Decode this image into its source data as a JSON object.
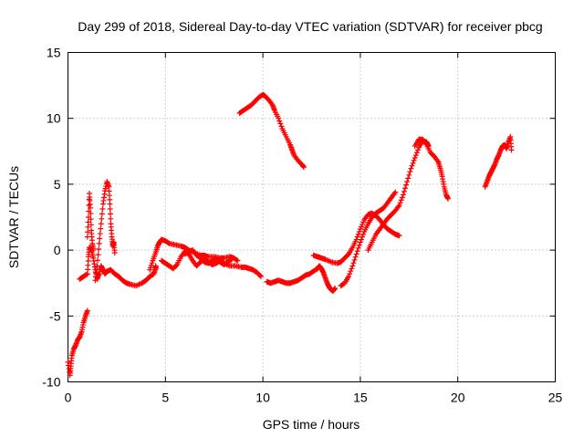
{
  "chart_data": {
    "type": "scatter",
    "title": "Day 299 of 2018, Sidereal Day-to-day VTEC variation (SDTVAR) for receiver pbcg",
    "xlabel": "GPS time / hours",
    "ylabel": "SDTVAR / TECUs",
    "xlim": [
      0,
      25
    ],
    "ylim": [
      -10,
      15
    ],
    "xticks": [
      0,
      5,
      10,
      15,
      20,
      25
    ],
    "yticks": [
      -10,
      -5,
      0,
      5,
      10,
      15
    ],
    "grid": true,
    "marker": "+",
    "series": [
      {
        "name": "SDTVAR",
        "color": "#ff0000",
        "segments": [
          [
            [
              0.0,
              -8.5
            ],
            [
              0.1,
              -9.5
            ],
            [
              0.15,
              -8.8
            ],
            [
              0.2,
              -8.0
            ],
            [
              0.3,
              -7.5
            ],
            [
              0.4,
              -7.2
            ],
            [
              0.5,
              -6.8
            ],
            [
              0.6,
              -6.6
            ],
            [
              0.7,
              -6.2
            ],
            [
              0.8,
              -5.5
            ],
            [
              0.9,
              -5.0
            ],
            [
              1.0,
              -4.6
            ]
          ],
          [
            [
              0.6,
              -2.2
            ],
            [
              0.8,
              -2.0
            ],
            [
              1.0,
              -1.8
            ],
            [
              1.05,
              -0.5
            ],
            [
              1.1,
              0.2
            ],
            [
              1.2,
              0.0
            ],
            [
              1.3,
              -0.6
            ],
            [
              1.4,
              -1.5
            ],
            [
              1.5,
              -2.2
            ],
            [
              1.6,
              -1.8
            ],
            [
              1.7,
              -1.2
            ],
            [
              1.8,
              -1.5
            ],
            [
              1.9,
              -1.8
            ],
            [
              2.0,
              -1.6
            ],
            [
              2.2,
              -1.5
            ],
            [
              2.4,
              -1.8
            ],
            [
              2.6,
              -2.0
            ]
          ],
          [
            [
              1.0,
              1.0
            ],
            [
              1.05,
              2.5
            ],
            [
              1.1,
              4.3
            ],
            [
              1.15,
              3.2
            ],
            [
              1.2,
              1.5
            ],
            [
              1.25,
              0.5
            ],
            [
              1.3,
              0.0
            ]
          ],
          [
            [
              1.4,
              -2.3
            ],
            [
              1.5,
              -1.2
            ],
            [
              1.6,
              0.5
            ],
            [
              1.7,
              2.0
            ],
            [
              1.8,
              3.5
            ],
            [
              1.9,
              4.5
            ],
            [
              2.0,
              5.2
            ],
            [
              2.1,
              4.8
            ],
            [
              2.15,
              3.5
            ],
            [
              2.2,
              2.0
            ],
            [
              2.25,
              1.0
            ],
            [
              2.3,
              0.3
            ],
            [
              2.35,
              0.6
            ],
            [
              2.4,
              -0.2
            ]
          ],
          [
            [
              2.6,
              -2.0
            ],
            [
              2.8,
              -2.3
            ],
            [
              3.0,
              -2.5
            ],
            [
              3.2,
              -2.6
            ],
            [
              3.5,
              -2.7
            ],
            [
              3.8,
              -2.5
            ],
            [
              4.0,
              -2.3
            ],
            [
              4.2,
              -2.0
            ],
            [
              4.4,
              -1.8
            ],
            [
              4.5,
              -1.4
            ],
            [
              4.5,
              -1.2
            ]
          ],
          [
            [
              4.2,
              -1.5
            ],
            [
              4.35,
              -0.8
            ],
            [
              4.5,
              -0.2
            ],
            [
              4.6,
              0.3
            ],
            [
              4.7,
              0.6
            ],
            [
              4.8,
              0.8
            ],
            [
              5.0,
              0.7
            ],
            [
              5.2,
              0.5
            ],
            [
              5.5,
              0.4
            ],
            [
              5.8,
              0.3
            ],
            [
              6.0,
              0.2
            ],
            [
              6.2,
              0.0
            ],
            [
              6.5,
              -0.2
            ],
            [
              6.8,
              -0.4
            ],
            [
              7.0,
              -0.4
            ],
            [
              7.2,
              -0.5
            ],
            [
              7.5,
              -0.5
            ],
            [
              7.8,
              -0.6
            ],
            [
              8.0,
              -0.6
            ],
            [
              8.3,
              -0.5
            ],
            [
              8.5,
              -0.6
            ],
            [
              8.7,
              -0.8
            ]
          ],
          [
            [
              4.8,
              -0.8
            ],
            [
              5.0,
              -1.0
            ],
            [
              5.2,
              -1.2
            ],
            [
              5.4,
              -1.4
            ],
            [
              5.6,
              -1.1
            ],
            [
              5.8,
              -0.5
            ],
            [
              6.0,
              -0.1
            ],
            [
              6.2,
              -0.3
            ],
            [
              6.4,
              -0.8
            ],
            [
              6.6,
              -1.2
            ],
            [
              6.8,
              -0.9
            ],
            [
              7.0,
              -0.7
            ],
            [
              7.2,
              -0.9
            ],
            [
              7.4,
              -1.1
            ],
            [
              7.6,
              -1.0
            ],
            [
              7.8,
              -0.8
            ],
            [
              8.0,
              -1.0
            ],
            [
              8.3,
              -1.2
            ],
            [
              8.6,
              -1.2
            ],
            [
              8.9,
              -1.3
            ],
            [
              9.1,
              -1.3
            ],
            [
              9.3,
              -1.4
            ],
            [
              9.5,
              -1.5
            ],
            [
              9.7,
              -1.7
            ],
            [
              9.9,
              -2.0
            ]
          ],
          [
            [
              6.0,
              -0.3
            ],
            [
              6.2,
              -0.1
            ],
            [
              6.4,
              0.0
            ],
            [
              6.6,
              -0.4
            ],
            [
              6.8,
              -0.6
            ],
            [
              7.0,
              -0.9
            ],
            [
              7.2,
              -1.0
            ],
            [
              7.4,
              -0.8
            ],
            [
              7.6,
              -0.7
            ],
            [
              7.8,
              -0.9
            ],
            [
              8.0,
              -1.1
            ],
            [
              8.2,
              -0.9
            ],
            [
              8.4,
              -0.7
            ]
          ],
          [
            [
              8.8,
              10.4
            ],
            [
              9.0,
              10.6
            ],
            [
              9.2,
              10.8
            ],
            [
              9.4,
              11.0
            ],
            [
              9.6,
              11.3
            ],
            [
              9.8,
              11.6
            ],
            [
              10.0,
              11.8
            ],
            [
              10.1,
              11.7
            ],
            [
              10.3,
              11.4
            ],
            [
              10.5,
              11.0
            ],
            [
              10.6,
              10.6
            ],
            [
              10.8,
              10.0
            ],
            [
              11.0,
              9.2
            ],
            [
              11.2,
              8.6
            ],
            [
              11.4,
              8.0
            ],
            [
              11.5,
              7.6
            ],
            [
              11.6,
              7.2
            ],
            [
              11.8,
              6.8
            ],
            [
              12.0,
              6.5
            ],
            [
              12.1,
              6.3
            ]
          ],
          [
            [
              10.2,
              -2.4
            ],
            [
              10.4,
              -2.5
            ],
            [
              10.6,
              -2.4
            ],
            [
              10.8,
              -2.3
            ],
            [
              11.0,
              -2.4
            ],
            [
              11.2,
              -2.5
            ],
            [
              11.4,
              -2.5
            ],
            [
              11.6,
              -2.4
            ],
            [
              11.8,
              -2.3
            ],
            [
              12.0,
              -2.1
            ],
            [
              12.2,
              -1.9
            ],
            [
              12.4,
              -1.8
            ],
            [
              12.6,
              -1.6
            ],
            [
              12.8,
              -1.4
            ],
            [
              12.9,
              -1.2
            ],
            [
              13.0,
              -1.4
            ],
            [
              13.1,
              -1.7
            ],
            [
              13.2,
              -2.1
            ],
            [
              13.3,
              -2.5
            ],
            [
              13.4,
              -2.8
            ],
            [
              13.5,
              -3.0
            ],
            [
              13.6,
              -3.1
            ],
            [
              13.7,
              -2.9
            ]
          ],
          [
            [
              12.6,
              -0.4
            ],
            [
              12.8,
              -0.5
            ],
            [
              13.0,
              -0.6
            ],
            [
              13.2,
              -0.7
            ],
            [
              13.5,
              -0.9
            ],
            [
              13.8,
              -1.0
            ],
            [
              14.0,
              -0.9
            ],
            [
              14.2,
              -0.6
            ],
            [
              14.4,
              -0.3
            ],
            [
              14.6,
              0.2
            ],
            [
              14.8,
              0.8
            ],
            [
              15.0,
              1.6
            ],
            [
              15.2,
              2.3
            ],
            [
              15.4,
              2.7
            ],
            [
              15.6,
              2.8
            ],
            [
              15.8,
              2.6
            ],
            [
              16.0,
              2.3
            ],
            [
              16.2,
              1.9
            ],
            [
              16.4,
              1.6
            ],
            [
              16.6,
              1.4
            ],
            [
              16.8,
              1.2
            ],
            [
              17.0,
              1.1
            ]
          ],
          [
            [
              14.0,
              -2.7
            ],
            [
              14.2,
              -2.5
            ],
            [
              14.4,
              -2.0
            ],
            [
              14.6,
              -1.2
            ],
            [
              14.8,
              -0.3
            ],
            [
              15.0,
              0.6
            ],
            [
              15.2,
              1.4
            ],
            [
              15.4,
              2.0
            ],
            [
              15.6,
              2.5
            ],
            [
              15.8,
              2.8
            ],
            [
              16.0,
              3.0
            ],
            [
              16.2,
              3.2
            ],
            [
              16.4,
              3.6
            ],
            [
              16.6,
              4.0
            ],
            [
              16.8,
              4.4
            ]
          ],
          [
            [
              15.4,
              0.0
            ],
            [
              15.6,
              0.6
            ],
            [
              15.8,
              1.2
            ],
            [
              16.0,
              1.6
            ],
            [
              16.2,
              2.0
            ],
            [
              16.4,
              2.4
            ],
            [
              16.6,
              2.7
            ],
            [
              16.8,
              3.0
            ],
            [
              17.0,
              3.4
            ],
            [
              17.2,
              4.2
            ],
            [
              17.4,
              5.2
            ],
            [
              17.6,
              6.2
            ],
            [
              17.8,
              7.0
            ],
            [
              18.0,
              7.8
            ],
            [
              18.2,
              8.3
            ],
            [
              18.4,
              8.2
            ],
            [
              18.5,
              7.9
            ]
          ],
          [
            [
              17.8,
              7.9
            ],
            [
              18.0,
              8.4
            ],
            [
              18.2,
              8.4
            ],
            [
              18.4,
              8.0
            ],
            [
              18.6,
              7.4
            ],
            [
              18.8,
              7.1
            ],
            [
              19.0,
              6.7
            ],
            [
              19.1,
              6.2
            ],
            [
              19.2,
              5.6
            ],
            [
              19.3,
              4.8
            ],
            [
              19.4,
              4.2
            ],
            [
              19.5,
              3.9
            ]
          ],
          [
            [
              21.4,
              4.8
            ],
            [
              21.5,
              5.2
            ],
            [
              21.6,
              5.6
            ],
            [
              21.7,
              5.9
            ],
            [
              21.8,
              6.2
            ],
            [
              21.9,
              6.5
            ],
            [
              22.0,
              6.9
            ],
            [
              22.1,
              7.2
            ],
            [
              22.2,
              7.6
            ],
            [
              22.3,
              7.9
            ],
            [
              22.4,
              8.0
            ],
            [
              22.5,
              7.7
            ],
            [
              22.6,
              8.2
            ],
            [
              22.7,
              8.6
            ],
            [
              22.75,
              7.6
            ]
          ]
        ]
      }
    ]
  }
}
